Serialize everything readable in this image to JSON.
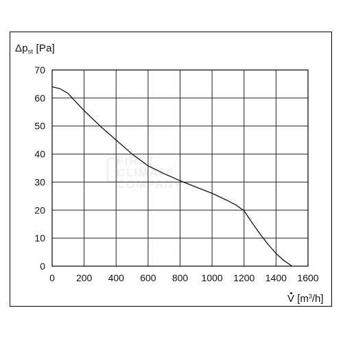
{
  "chart_data": {
    "type": "line",
    "ylabel": {
      "main": "Δp",
      "sub": "st",
      "unit": "[Pa]"
    },
    "xlabel": {
      "main": "V",
      "unit": "[m",
      "unit_sup": "3",
      "unit_end": "/h]"
    },
    "xlim": [
      0,
      1600
    ],
    "ylim": [
      0,
      70
    ],
    "x_ticks": [
      0,
      200,
      400,
      600,
      800,
      1000,
      1200,
      1400,
      1600
    ],
    "y_ticks": [
      0,
      10,
      20,
      30,
      40,
      50,
      60,
      70
    ],
    "grid": true,
    "series": [
      {
        "x": [
          0,
          50,
          100,
          150,
          200,
          300,
          400,
          500,
          600,
          700,
          800,
          900,
          1000,
          1100,
          1150,
          1200,
          1250,
          1300,
          1350,
          1400,
          1450,
          1500
        ],
        "y": [
          64,
          63.3,
          61.6,
          58.5,
          55.5,
          50,
          45,
          40,
          35.8,
          33,
          30.5,
          28.2,
          26,
          23.3,
          21.8,
          19.8,
          15.5,
          11.5,
          7.8,
          4.5,
          2,
          0
        ]
      }
    ]
  },
  "watermark": {
    "line1": "FIRST",
    "line2": "CLIMATE",
    "line3": "COMPANY"
  },
  "colors": {
    "line": "#111111",
    "grid": "#222222",
    "text": "#111111"
  }
}
